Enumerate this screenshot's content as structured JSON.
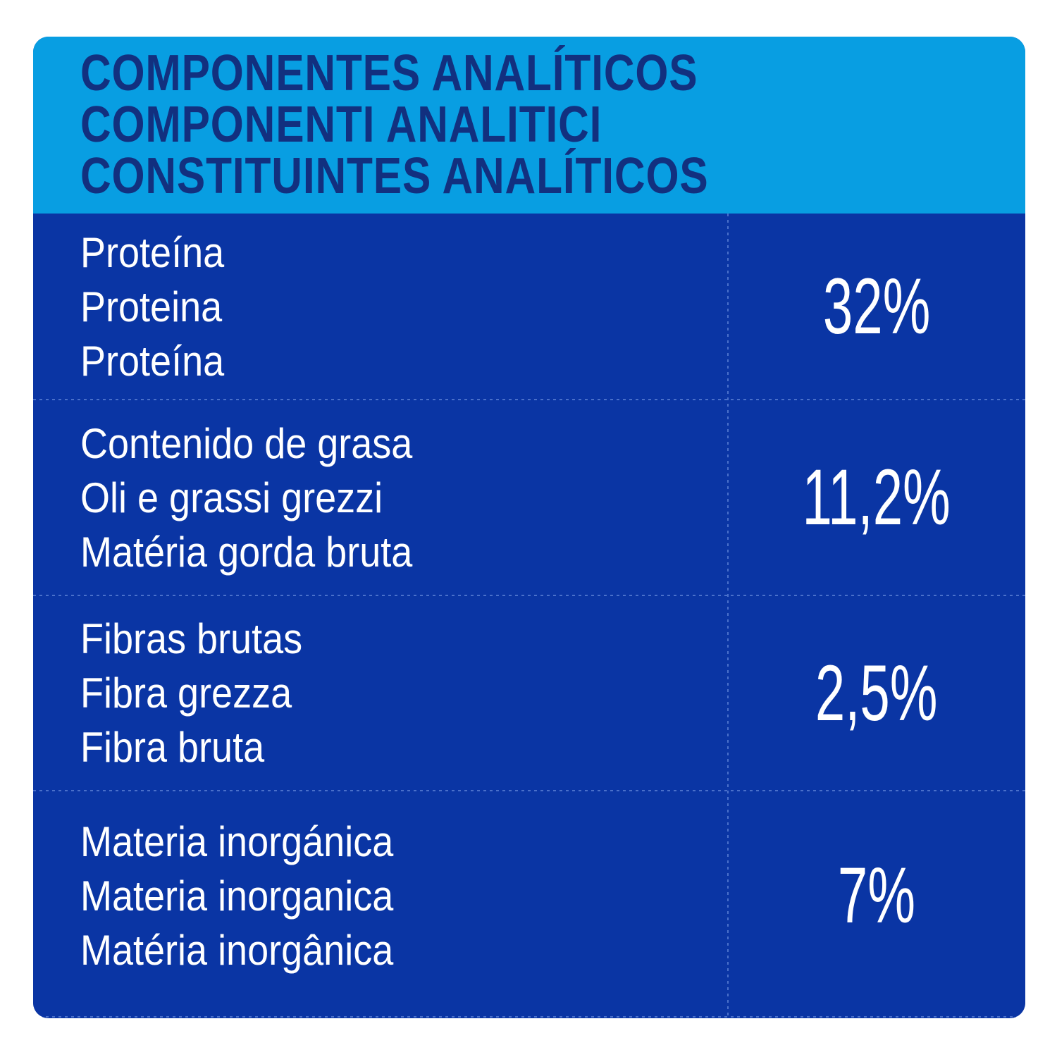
{
  "header": {
    "lines": [
      "COMPONENTES ANALÍTICOS",
      "COMPONENTI ANALITICI",
      "CONSTITUINTES ANALÍTICOS"
    ]
  },
  "rows": [
    {
      "labels": [
        "Proteína",
        "Proteina",
        "Proteína"
      ],
      "value": "32%"
    },
    {
      "labels": [
        "Contenido de grasa",
        "Oli e grassi grezzi",
        "Matéria gorda bruta"
      ],
      "value": "11,2%"
    },
    {
      "labels": [
        "Fibras brutas",
        "Fibra grezza",
        "Fibra bruta"
      ],
      "value": "2,5%"
    },
    {
      "labels": [
        "Materia inorgánica",
        "Materia inorganica",
        "Matéria inorgânica"
      ],
      "value": "7%"
    }
  ],
  "colors": {
    "header_bg": "#089EE2",
    "header_text": "#12307F",
    "body_bg": "#0A35A4",
    "body_text": "#FFFFFF",
    "divider": "#5F83D6",
    "page_bg": "#FFFFFF"
  }
}
